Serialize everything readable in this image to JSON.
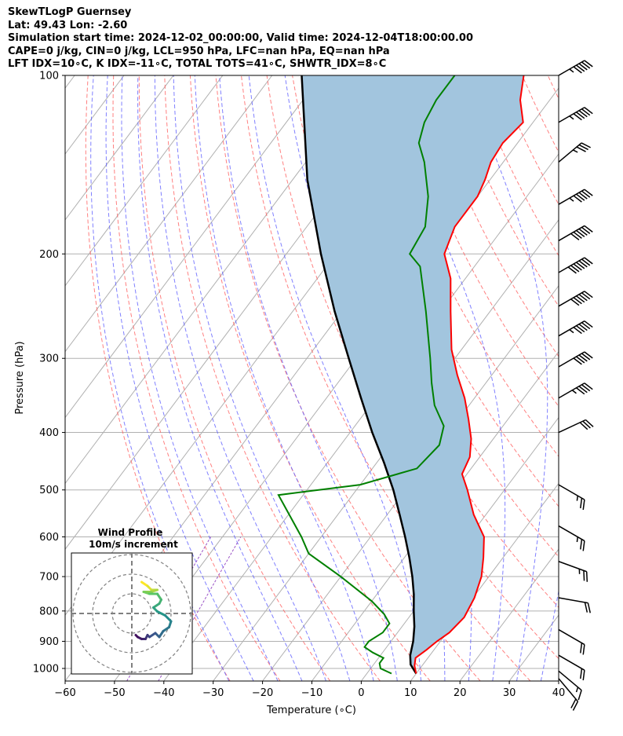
{
  "header": {
    "title": "SkewTLogP Guernsey",
    "location": "Lat: 49.43   Lon: -2.60",
    "times": "Simulation start time: 2024-12-02_00:00:00, Valid time: 2024-12-04T18:00:00.00",
    "indices_1": "CAPE=0 j/kg, CIN=0 j/kg, LCL=950 hPa, LFC=nan hPa, EQ=nan hPa",
    "indices_2": "LFT IDX=10∘C, K IDX=-11∘C, TOTAL TOTS=41∘C, SHWTR_IDX=8∘C"
  },
  "chart_data": {
    "type": "skew-t log-p",
    "xlabel": "Temperature (∘C)",
    "ylabel": "Pressure (hPa)",
    "xlim": [
      -60,
      40
    ],
    "ylim": [
      1050,
      100
    ],
    "y_scale": "log",
    "x_ticks": [
      -60,
      -50,
      -40,
      -30,
      -20,
      -10,
      0,
      10,
      20,
      30,
      40
    ],
    "y_ticks": [
      100,
      200,
      300,
      400,
      500,
      600,
      700,
      800,
      900,
      1000
    ],
    "grid": true,
    "colors": {
      "temperature": "#ff0000",
      "dewpoint": "#008000",
      "parcel": "#000000",
      "shading": "#a2c5de",
      "dry_adiabats": "#ff6060",
      "moist_adiabats": "#6060ff",
      "mixing_ratio": "#9040c0",
      "isotherms": "#b0b0b0"
    },
    "temperature_profile": [
      {
        "p": 1020,
        "t": 10.0
      },
      {
        "p": 990,
        "t": 8.5
      },
      {
        "p": 960,
        "t": 7.5
      },
      {
        "p": 930,
        "t": 8.5
      },
      {
        "p": 900,
        "t": 9.3
      },
      {
        "p": 870,
        "t": 10.5
      },
      {
        "p": 820,
        "t": 11.2
      },
      {
        "p": 760,
        "t": 10.3
      },
      {
        "p": 700,
        "t": 8.5
      },
      {
        "p": 650,
        "t": 6.0
      },
      {
        "p": 600,
        "t": 3.0
      },
      {
        "p": 550,
        "t": -2.5
      },
      {
        "p": 500,
        "t": -7.5
      },
      {
        "p": 470,
        "t": -11.0
      },
      {
        "p": 440,
        "t": -12.0
      },
      {
        "p": 410,
        "t": -14.5
      },
      {
        "p": 380,
        "t": -18.0
      },
      {
        "p": 350,
        "t": -22.0
      },
      {
        "p": 320,
        "t": -27.0
      },
      {
        "p": 290,
        "t": -32.0
      },
      {
        "p": 250,
        "t": -38.0
      },
      {
        "p": 220,
        "t": -43.0
      },
      {
        "p": 200,
        "t": -48.0
      },
      {
        "p": 180,
        "t": -50.0
      },
      {
        "p": 160,
        "t": -50.0
      },
      {
        "p": 150,
        "t": -51.0
      },
      {
        "p": 140,
        "t": -52.5
      },
      {
        "p": 130,
        "t": -53.0
      },
      {
        "p": 120,
        "t": -52.0
      },
      {
        "p": 110,
        "t": -56.0
      },
      {
        "p": 100,
        "t": -59.0
      }
    ],
    "dewpoint_profile": [
      {
        "p": 1020,
        "t": 5.0
      },
      {
        "p": 1000,
        "t": 2.0
      },
      {
        "p": 980,
        "t": 1.0
      },
      {
        "p": 960,
        "t": 1.0
      },
      {
        "p": 940,
        "t": -2.0
      },
      {
        "p": 920,
        "t": -4.5
      },
      {
        "p": 900,
        "t": -4.5
      },
      {
        "p": 870,
        "t": -3.0
      },
      {
        "p": 840,
        "t": -3.0
      },
      {
        "p": 810,
        "t": -5.5
      },
      {
        "p": 770,
        "t": -10.0
      },
      {
        "p": 700,
        "t": -20.0
      },
      {
        "p": 640,
        "t": -30.0
      },
      {
        "p": 600,
        "t": -34.0
      },
      {
        "p": 510,
        "t": -45.0
      },
      {
        "p": 490,
        "t": -30.0
      },
      {
        "p": 460,
        "t": -21.0
      },
      {
        "p": 420,
        "t": -20.0
      },
      {
        "p": 390,
        "t": -22.0
      },
      {
        "p": 360,
        "t": -27.0
      },
      {
        "p": 330,
        "t": -31.0
      },
      {
        "p": 300,
        "t": -35.0
      },
      {
        "p": 250,
        "t": -43.0
      },
      {
        "p": 210,
        "t": -51.0
      },
      {
        "p": 200,
        "t": -55.0
      },
      {
        "p": 180,
        "t": -56.0
      },
      {
        "p": 160,
        "t": -60.0
      },
      {
        "p": 140,
        "t": -66.0
      },
      {
        "p": 130,
        "t": -70.0
      },
      {
        "p": 120,
        "t": -72.0
      },
      {
        "p": 110,
        "t": -73.0
      },
      {
        "p": 100,
        "t": -73.0
      }
    ],
    "parcel_profile": [
      {
        "p": 1020,
        "t": 10.0
      },
      {
        "p": 985,
        "t": 7.5
      },
      {
        "p": 950,
        "t": 6.0
      },
      {
        "p": 900,
        "t": 4.5
      },
      {
        "p": 850,
        "t": 2.5
      },
      {
        "p": 800,
        "t": 0.0
      },
      {
        "p": 750,
        "t": -2.5
      },
      {
        "p": 700,
        "t": -5.5
      },
      {
        "p": 650,
        "t": -9.0
      },
      {
        "p": 600,
        "t": -13.0
      },
      {
        "p": 550,
        "t": -17.5
      },
      {
        "p": 500,
        "t": -22.5
      },
      {
        "p": 450,
        "t": -28.5
      },
      {
        "p": 400,
        "t": -35.5
      },
      {
        "p": 350,
        "t": -43.0
      },
      {
        "p": 300,
        "t": -51.5
      },
      {
        "p": 250,
        "t": -61.5
      },
      {
        "p": 200,
        "t": -73.0
      },
      {
        "p": 150,
        "t": -87.0
      },
      {
        "p": 100,
        "t": -104.0
      }
    ],
    "wind_barbs": [
      {
        "p": 100,
        "speed_kt": 55,
        "dir_deg": 300
      },
      {
        "p": 120,
        "speed_kt": 55,
        "dir_deg": 300
      },
      {
        "p": 140,
        "speed_kt": 35,
        "dir_deg": 310
      },
      {
        "p": 165,
        "speed_kt": 55,
        "dir_deg": 300
      },
      {
        "p": 190,
        "speed_kt": 60,
        "dir_deg": 300
      },
      {
        "p": 215,
        "speed_kt": 70,
        "dir_deg": 300
      },
      {
        "p": 245,
        "speed_kt": 60,
        "dir_deg": 300
      },
      {
        "p": 275,
        "speed_kt": 55,
        "dir_deg": 300
      },
      {
        "p": 310,
        "speed_kt": 50,
        "dir_deg": 300
      },
      {
        "p": 350,
        "speed_kt": 45,
        "dir_deg": 300
      },
      {
        "p": 400,
        "speed_kt": 30,
        "dir_deg": 295
      },
      {
        "p": 490,
        "speed_kt": 25,
        "dir_deg": 240
      },
      {
        "p": 575,
        "speed_kt": 25,
        "dir_deg": 240
      },
      {
        "p": 660,
        "speed_kt": 25,
        "dir_deg": 250
      },
      {
        "p": 760,
        "speed_kt": 20,
        "dir_deg": 260
      },
      {
        "p": 860,
        "speed_kt": 20,
        "dir_deg": 240
      },
      {
        "p": 950,
        "speed_kt": 20,
        "dir_deg": 240
      },
      {
        "p": 1010,
        "speed_kt": 15,
        "dir_deg": 230
      },
      {
        "p": 1040,
        "speed_kt": 20,
        "dir_deg": 220
      }
    ],
    "hodograph": {
      "title": "Wind Profile",
      "subtitle": "10m/s increment",
      "ring_increment_ms": 10,
      "rings": [
        10,
        20,
        30
      ],
      "points_uv": [
        [
          5,
          -16
        ],
        [
          8,
          -14
        ],
        [
          10,
          -12
        ],
        [
          13,
          -12
        ],
        [
          10,
          -11
        ],
        [
          6,
          -11
        ],
        [
          9,
          -10
        ],
        [
          13,
          -10
        ],
        [
          15,
          -7
        ],
        [
          14,
          -5
        ],
        [
          11,
          -3
        ],
        [
          13,
          -1
        ],
        [
          17,
          1
        ],
        [
          20,
          4
        ],
        [
          19,
          7
        ],
        [
          16,
          9
        ],
        [
          14,
          12
        ],
        [
          12,
          10
        ],
        [
          9,
          12
        ],
        [
          8,
          11
        ],
        [
          7,
          13
        ],
        [
          5,
          13
        ],
        [
          3,
          12
        ],
        [
          2,
          11
        ]
      ]
    }
  }
}
